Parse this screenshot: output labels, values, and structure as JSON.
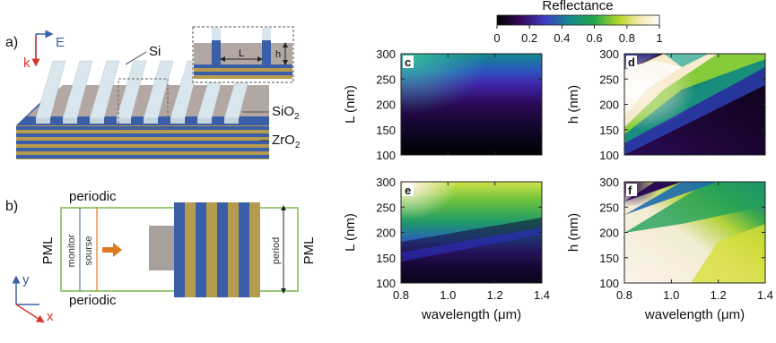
{
  "panel_a": {
    "label": "a)",
    "axis_e": "E",
    "axis_k": "k",
    "si": "Si",
    "sio2_main": "SiO",
    "sio2_sub": "2",
    "zro2_main": "ZrO",
    "zro2_sub": "2",
    "inset_l": "L",
    "inset_h": "h"
  },
  "panel_b": {
    "label": "b)",
    "periodic_top": "periodic",
    "periodic_bottom": "periodic",
    "pml_left": "PML",
    "pml_right": "PML",
    "monitor": "monitor",
    "source": "sourse",
    "period": "period",
    "axis_y": "y",
    "axis_x": "x"
  },
  "colorbar": {
    "title": "Reflectance",
    "ticks": [
      "0",
      "0.2",
      "0.4",
      "0.6",
      "0.8",
      "1"
    ]
  },
  "colors": {
    "si": "#d9e6ee",
    "sio2": "#b3a7a3",
    "blue": "#3b5ea8",
    "gold": "#b59b4e",
    "sim_box": "#79b84b",
    "arrow": "#e07a1f"
  },
  "chart_data": [
    {
      "type": "heatmap",
      "panel": "c",
      "xlabel": "",
      "ylabel": "L (nm)",
      "xlim": [
        0.8,
        1.4
      ],
      "ylim": [
        100,
        300
      ],
      "yticks": [
        "300",
        "250",
        "200",
        "150",
        "100"
      ],
      "colorbar_range": [
        0,
        1
      ]
    },
    {
      "type": "heatmap",
      "panel": "d",
      "xlabel": "",
      "ylabel": "h (nm)",
      "xlim": [
        0.8,
        1.4
      ],
      "ylim": [
        100,
        300
      ],
      "yticks": [
        "300",
        "250",
        "200",
        "150",
        "100"
      ],
      "colorbar_range": [
        0,
        1
      ]
    },
    {
      "type": "heatmap",
      "panel": "e",
      "xlabel": "wavelength (μm)",
      "ylabel": "L (nm)",
      "xlim": [
        0.8,
        1.4
      ],
      "ylim": [
        100,
        300
      ],
      "xticks": [
        "0.8",
        "1.0",
        "1.2",
        "1.4"
      ],
      "yticks": [
        "300",
        "250",
        "200",
        "150",
        "100"
      ],
      "colorbar_range": [
        0,
        1
      ]
    },
    {
      "type": "heatmap",
      "panel": "f",
      "xlabel": "wavelength (μm)",
      "ylabel": "h (nm)",
      "xlim": [
        0.8,
        1.4
      ],
      "ylim": [
        100,
        300
      ],
      "xticks": [
        "0.8",
        "1.0",
        "1.2",
        "1.4"
      ],
      "yticks": [
        "300",
        "250",
        "200",
        "150",
        "100"
      ],
      "colorbar_range": [
        0,
        1
      ]
    }
  ]
}
